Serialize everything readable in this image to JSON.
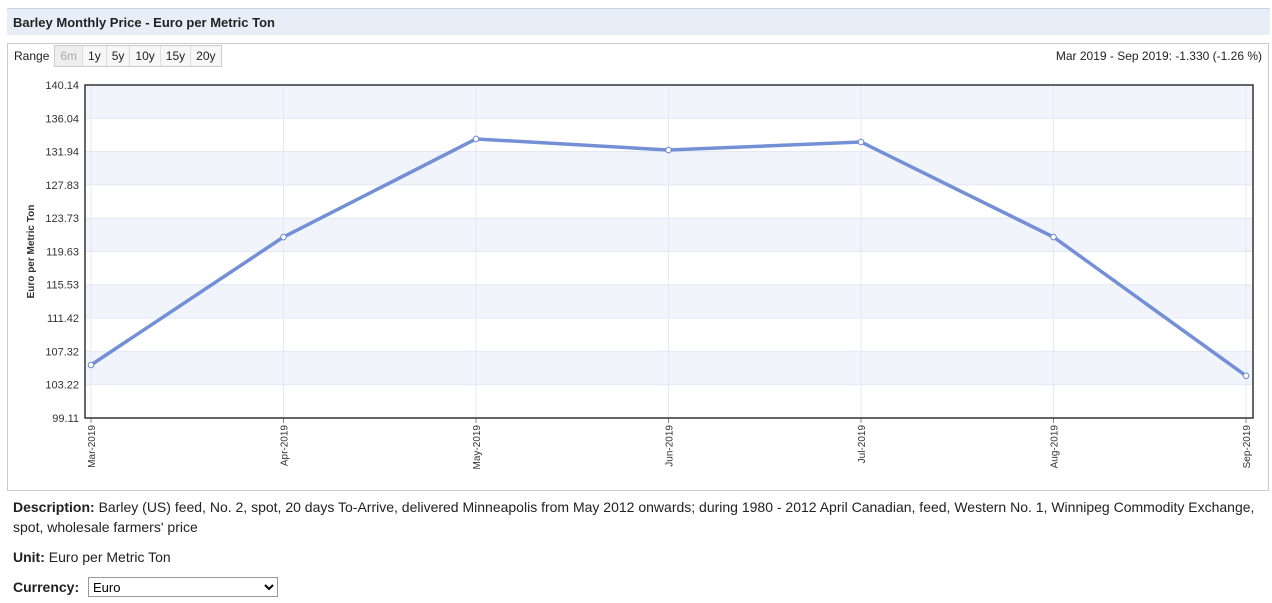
{
  "header": {
    "title": "Barley Monthly Price - Euro per Metric Ton"
  },
  "range": {
    "label": "Range",
    "options": [
      "6m",
      "1y",
      "5y",
      "10y",
      "15y",
      "20y"
    ]
  },
  "change_summary": "Mar 2019 - Sep 2019: -1.330 (-1.26 %)",
  "chart_data": {
    "type": "line",
    "y_label": "Euro per Metric Ton",
    "categories": [
      "Mar-2019",
      "Apr-2019",
      "May-2019",
      "Jun-2019",
      "Jul-2019",
      "Aug-2019",
      "Sep-2019"
    ],
    "values": [
      105.64,
      121.41,
      133.49,
      132.13,
      133.12,
      121.41,
      104.31
    ],
    "color": "#6b8ad4",
    "ylim": [
      99.11,
      140.14
    ],
    "yticks": [
      99.11,
      103.22,
      107.32,
      111.42,
      115.53,
      119.63,
      123.73,
      127.83,
      131.94,
      136.04,
      140.14
    ],
    "grid": true
  },
  "details": {
    "description_label": "Description:",
    "description": "Barley (US) feed, No. 2, spot, 20 days To-Arrive, delivered Minneapolis from May 2012 onwards; during 1980 - 2012 April Canadian, feed, Western No. 1, Winnipeg Commodity Exchange, spot, wholesale farmers' price",
    "unit_label": "Unit:",
    "unit": "Euro per Metric Ton",
    "currency_label": "Currency:",
    "currency": "Euro"
  }
}
